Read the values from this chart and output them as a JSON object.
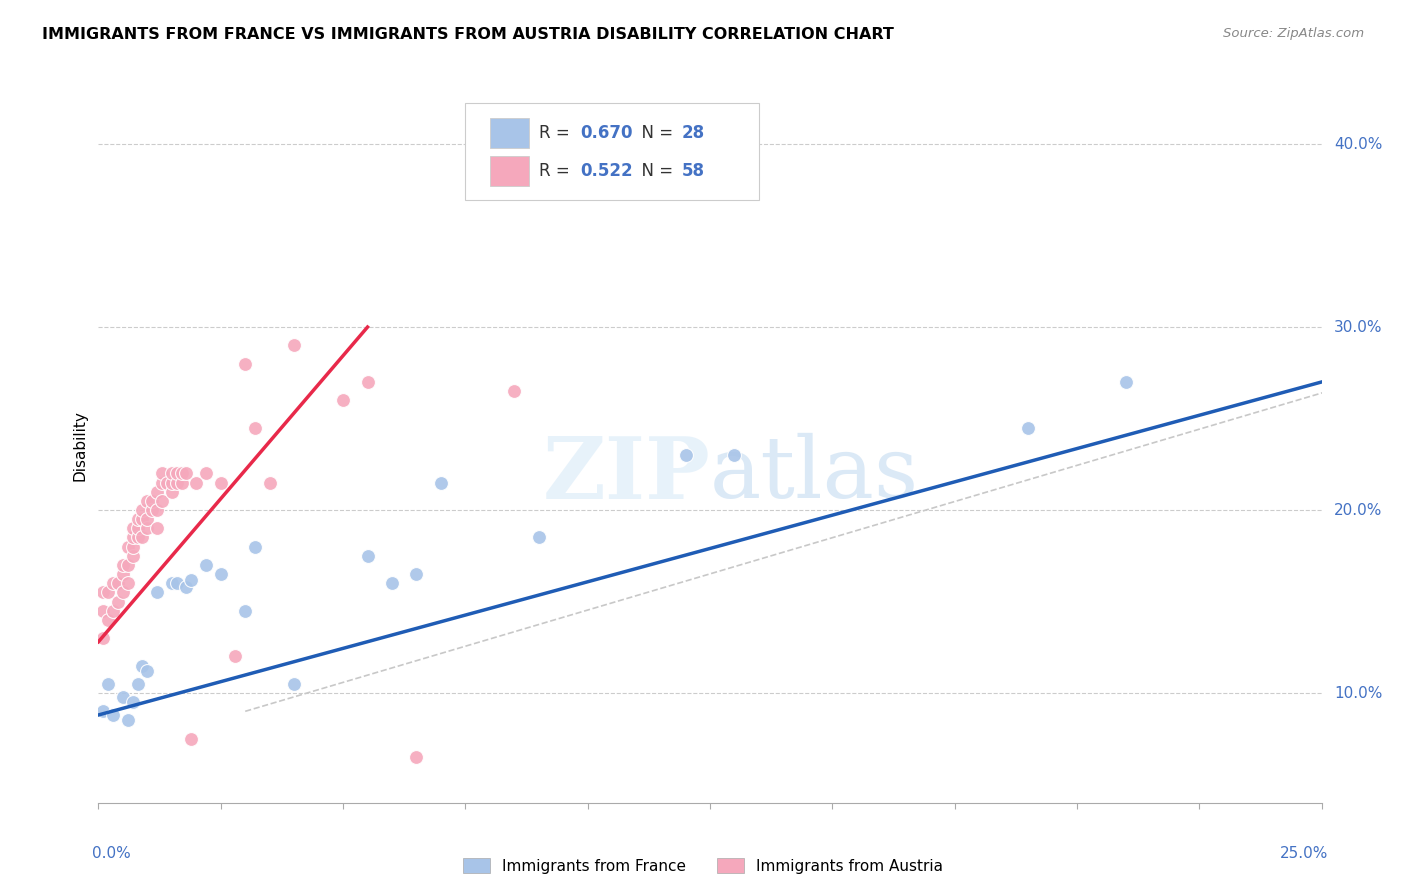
{
  "title": "IMMIGRANTS FROM FRANCE VS IMMIGRANTS FROM AUSTRIA DISABILITY CORRELATION CHART",
  "source": "Source: ZipAtlas.com",
  "ylabel": "Disability",
  "france_R": 0.67,
  "france_N": 28,
  "austria_R": 0.522,
  "austria_N": 58,
  "france_color": "#a8c4e8",
  "austria_color": "#f5a8bc",
  "france_line_color": "#1f5cb5",
  "austria_line_color": "#e8294a",
  "diagonal_color": "#c8c8c8",
  "background_color": "#ffffff",
  "watermark": "ZIPatlas",
  "xlim": [
    0.0,
    0.25
  ],
  "ylim": [
    0.04,
    0.43
  ],
  "yticks": [
    0.1,
    0.2,
    0.3,
    0.4
  ],
  "ytick_labels": [
    "10.0%",
    "20.0%",
    "30.0%",
    "40.0%"
  ],
  "france_x": [
    0.001,
    0.002,
    0.003,
    0.005,
    0.006,
    0.007,
    0.008,
    0.009,
    0.01,
    0.012,
    0.015,
    0.016,
    0.018,
    0.019,
    0.022,
    0.025,
    0.03,
    0.032,
    0.04,
    0.055,
    0.06,
    0.065,
    0.07,
    0.09,
    0.12,
    0.13,
    0.19,
    0.21
  ],
  "france_y": [
    0.09,
    0.105,
    0.088,
    0.098,
    0.085,
    0.095,
    0.105,
    0.115,
    0.112,
    0.155,
    0.16,
    0.16,
    0.158,
    0.162,
    0.17,
    0.165,
    0.145,
    0.18,
    0.105,
    0.175,
    0.16,
    0.165,
    0.215,
    0.185,
    0.23,
    0.23,
    0.245,
    0.27
  ],
  "austria_x": [
    0.001,
    0.001,
    0.001,
    0.002,
    0.002,
    0.003,
    0.003,
    0.004,
    0.004,
    0.005,
    0.005,
    0.005,
    0.006,
    0.006,
    0.006,
    0.007,
    0.007,
    0.007,
    0.007,
    0.008,
    0.008,
    0.008,
    0.009,
    0.009,
    0.009,
    0.01,
    0.01,
    0.01,
    0.011,
    0.011,
    0.012,
    0.012,
    0.012,
    0.013,
    0.013,
    0.013,
    0.014,
    0.015,
    0.015,
    0.015,
    0.016,
    0.016,
    0.017,
    0.017,
    0.018,
    0.019,
    0.02,
    0.022,
    0.025,
    0.028,
    0.03,
    0.032,
    0.035,
    0.04,
    0.05,
    0.055,
    0.065,
    0.085
  ],
  "austria_y": [
    0.13,
    0.145,
    0.155,
    0.14,
    0.155,
    0.145,
    0.16,
    0.15,
    0.16,
    0.155,
    0.165,
    0.17,
    0.16,
    0.17,
    0.18,
    0.175,
    0.18,
    0.185,
    0.19,
    0.185,
    0.19,
    0.195,
    0.185,
    0.195,
    0.2,
    0.19,
    0.195,
    0.205,
    0.2,
    0.205,
    0.19,
    0.2,
    0.21,
    0.205,
    0.215,
    0.22,
    0.215,
    0.21,
    0.215,
    0.22,
    0.215,
    0.22,
    0.215,
    0.22,
    0.22,
    0.075,
    0.215,
    0.22,
    0.215,
    0.12,
    0.28,
    0.245,
    0.215,
    0.29,
    0.26,
    0.27,
    0.065,
    0.265
  ]
}
